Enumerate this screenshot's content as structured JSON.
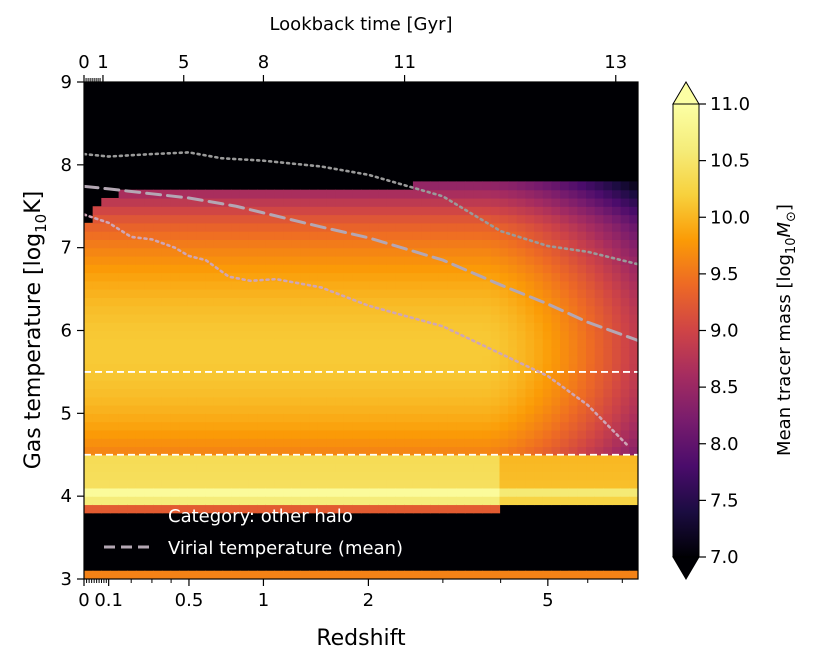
{
  "chart_data": {
    "type": "heatmap",
    "xlabel": "Redshift",
    "ylabel": "Gas temperature [log",
    "ylabel_sub": "10",
    "ylabel_tail": "K]",
    "top_xlabel": "Lookback time [Gyr]",
    "x_scale": "log(1+z)",
    "xlim": [
      0,
      7.5
    ],
    "ylim": [
      3,
      9
    ],
    "x_ticks": [
      {
        "value": 0,
        "label": "0"
      },
      {
        "value": 0.1,
        "label": "0.1"
      },
      {
        "value": 0.5,
        "label": "0.5"
      },
      {
        "value": 1,
        "label": "1"
      },
      {
        "value": 2,
        "label": "2"
      },
      {
        "value": 5,
        "label": "5"
      }
    ],
    "y_ticks": [
      {
        "value": 3,
        "label": "3"
      },
      {
        "value": 4,
        "label": "4"
      },
      {
        "value": 5,
        "label": "5"
      },
      {
        "value": 6,
        "label": "6"
      },
      {
        "value": 7,
        "label": "7"
      },
      {
        "value": 8,
        "label": "8"
      },
      {
        "value": 9,
        "label": "9"
      }
    ],
    "top_ticks": [
      {
        "z": 0,
        "label": "0"
      },
      {
        "z": 0.076,
        "label": "1"
      },
      {
        "z": 0.47,
        "label": "5"
      },
      {
        "z": 1.0,
        "label": "8"
      },
      {
        "z": 2.45,
        "label": "11"
      },
      {
        "z": 6.8,
        "label": "13"
      }
    ],
    "colorbar": {
      "label_prefix": "Mean tracer mass [log",
      "label_sub": "10",
      "label_var": "M",
      "label_sub2": "⊙",
      "label_tail": "]",
      "range": [
        7.0,
        11.0
      ],
      "ticks": [
        "7.0",
        "7.5",
        "8.0",
        "8.5",
        "9.0",
        "9.5",
        "10.0",
        "10.5",
        "11.0"
      ],
      "colormap": "inferno",
      "extend": "both"
    },
    "reference_lines": [
      {
        "y": 5.5,
        "style": "dashed",
        "color": "#ffffff"
      },
      {
        "y": 4.5,
        "style": "dashed",
        "color": "#ffffff"
      }
    ],
    "series": [
      {
        "name": "Virial temperature (mean)",
        "style": "dashed",
        "color": "#b4a7b4",
        "x": [
          0,
          0.1,
          0.3,
          0.5,
          0.8,
          1.0,
          1.5,
          2.0,
          3.0,
          4.0,
          5.0,
          6.0,
          7.5
        ],
        "y": [
          7.74,
          7.71,
          7.65,
          7.6,
          7.5,
          7.42,
          7.25,
          7.12,
          6.85,
          6.55,
          6.32,
          6.1,
          5.88
        ]
      },
      {
        "name": "",
        "style": "dotted",
        "color": "#9a9a9a",
        "x": [
          0,
          0.1,
          0.3,
          0.5,
          0.7,
          1.0,
          1.5,
          2.0,
          3.0,
          4.0,
          5.0,
          6.0,
          7.5
        ],
        "y": [
          8.13,
          8.1,
          8.13,
          8.15,
          8.08,
          8.05,
          7.98,
          7.88,
          7.62,
          7.2,
          7.02,
          6.95,
          6.8
        ]
      },
      {
        "name": "",
        "style": "dotted",
        "color": "#cfa6b6",
        "x": [
          0,
          0.1,
          0.2,
          0.3,
          0.42,
          0.5,
          0.6,
          0.75,
          0.9,
          1.1,
          1.5,
          2.0,
          3.0,
          4.0,
          5.0,
          6.0,
          7.2
        ],
        "y": [
          7.4,
          7.3,
          7.13,
          7.1,
          7.0,
          6.9,
          6.85,
          6.65,
          6.6,
          6.62,
          6.52,
          6.3,
          6.05,
          5.72,
          5.45,
          5.1,
          4.6
        ]
      }
    ],
    "legend": {
      "category": "Category: other halo",
      "line_entry": "Virial temperature (mean)",
      "position": "lower-left"
    }
  }
}
